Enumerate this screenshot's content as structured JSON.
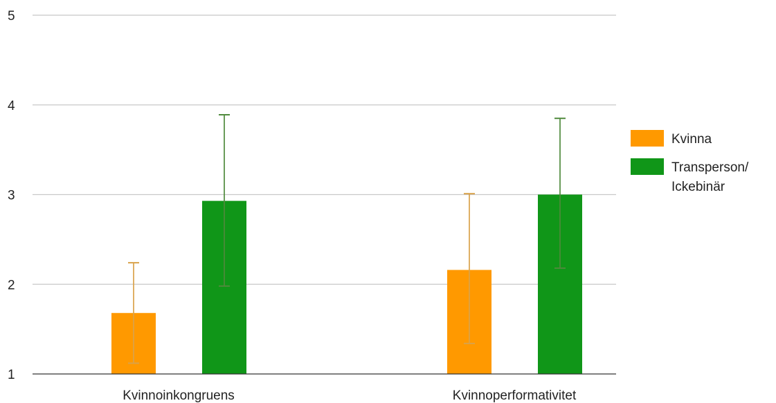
{
  "chart_data": {
    "type": "bar",
    "title": "",
    "xlabel": "",
    "ylabel": "",
    "ylim": [
      1,
      5
    ],
    "yticks": [
      "1",
      "2",
      "3",
      "4",
      "5"
    ],
    "grid": true,
    "legend_position": "right",
    "categories": [
      "Kvinnoinkongruens",
      "Kvinnoperformativitet"
    ],
    "series": [
      {
        "name": "Kvinna",
        "color": "#ff9900",
        "values": [
          1.68,
          2.16
        ],
        "error_low": [
          1.12,
          1.34
        ],
        "error_high": [
          2.24,
          3.01
        ]
      },
      {
        "name": "Transperson/ Ickebinär",
        "name_lines": [
          "Transperson/",
          "Ickebinär"
        ],
        "color": "#109618",
        "values": [
          2.93,
          3.0
        ],
        "error_low": [
          1.98,
          2.18
        ],
        "error_high": [
          3.89,
          3.85
        ]
      }
    ]
  }
}
